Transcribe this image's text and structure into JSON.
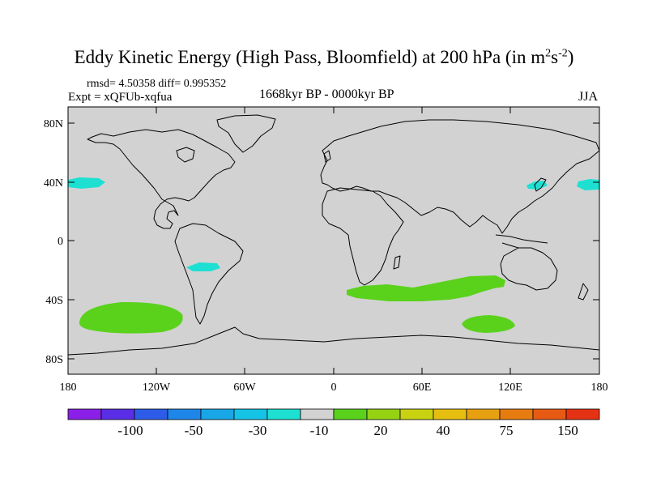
{
  "title": {
    "main": "Eddy Kinetic Energy (High Pass, Bloomfield) at 200 hPa (in m",
    "sup1": "2",
    "mid": "s",
    "sup2": "-2",
    "end": ")"
  },
  "stats": {
    "rmsd_line": "rmsd= 4.50358 diff= 0.995352"
  },
  "experiment": "Expt = xQFUb-xqfua",
  "period": "1668kyr BP - 0000kyr BP",
  "season": "JJA",
  "lat_ticks": [
    "80N",
    "40N",
    "0",
    "40S",
    "80S"
  ],
  "lon_ticks": [
    "180",
    "120W",
    "60W",
    "0",
    "60E",
    "120E",
    "180"
  ],
  "colorbar": {
    "labels": [
      "-100",
      "-50",
      "-30",
      "-10",
      "20",
      "40",
      "75",
      "150"
    ],
    "colors": [
      "#8a20e8",
      "#5a2ee6",
      "#2d5ce8",
      "#1e86e8",
      "#18a6e6",
      "#14c3e6",
      "#1ee0d2",
      "#d2d2d2",
      "#5ad21c",
      "#96d214",
      "#c8d210",
      "#e6be10",
      "#e6a010",
      "#e67c10",
      "#e65a14",
      "#e63214"
    ]
  },
  "colors": {
    "land_ocean_fill": "#d2d2d2",
    "negative_anomaly": "#1ee0d2",
    "positive_anomaly": "#5ad21c"
  }
}
